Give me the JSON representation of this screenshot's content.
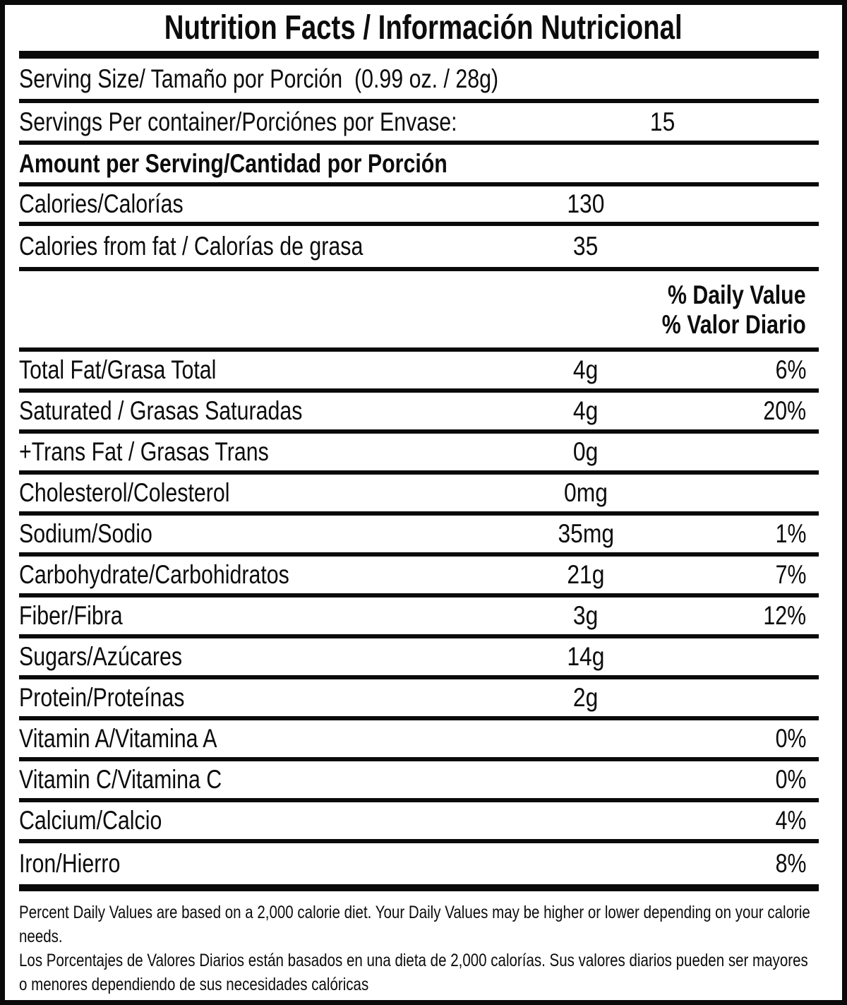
{
  "title": "Nutrition Facts / Información Nutricional",
  "serving": {
    "size_label": "Serving Size/ Tamaño por Porción  (0.99 oz. / 28g)",
    "per_container_label": "Servings Per container/Porciónes por Envase:",
    "per_container_value": "15"
  },
  "amount_per_serving_header": "Amount per Serving/Cantidad por Porción",
  "calories": {
    "label": "Calories/Calorías",
    "value": "130"
  },
  "calories_from_fat": {
    "label": "Calories from fat / Calorías de grasa",
    "value": "35"
  },
  "daily_value_header": {
    "line1": "% Daily Value",
    "line2": "% Valor Diario"
  },
  "nutrients": [
    {
      "label": "Total Fat/Grasa Total",
      "amount": "4g",
      "dv": "6%"
    },
    {
      "label": "Saturated / Grasas Saturadas",
      "amount": "4g",
      "dv": "20%"
    },
    {
      "label": "+Trans Fat / Grasas Trans",
      "amount": "0g",
      "dv": ""
    },
    {
      "label": "Cholesterol/Colesterol",
      "amount": "0mg",
      "dv": ""
    },
    {
      "label": "Sodium/Sodio",
      "amount": "35mg",
      "dv": "1%"
    },
    {
      "label": "Carbohydrate/Carbohidratos",
      "amount": "21g",
      "dv": "7%"
    },
    {
      "label": "Fiber/Fibra",
      "amount": "3g",
      "dv": "12%"
    },
    {
      "label": "Sugars/Azúcares",
      "amount": "14g",
      "dv": ""
    },
    {
      "label": "Protein/Proteínas",
      "amount": "2g",
      "dv": ""
    },
    {
      "label": "Vitamin A/Vitamina A",
      "amount": "",
      "dv": "0%"
    },
    {
      "label": "Vitamin C/Vitamina C",
      "amount": "",
      "dv": "0%"
    },
    {
      "label": "Calcium/Calcio",
      "amount": "",
      "dv": "4%"
    },
    {
      "label": "Iron/Hierro",
      "amount": "",
      "dv": "8%"
    }
  ],
  "footnote": {
    "en": "Percent Daily Values are based on a 2,000 calorie diet. Your Daily Values may be higher or lower depending on your calorie needs.",
    "es": "Los Porcentajes de Valores Diarios están basados en una dieta de 2,000 calorías. Sus valores diarios pueden ser mayores o menores dependiendo de sus necesidades calóricas"
  },
  "colors": {
    "ink": "#0c0c0c",
    "paper": "#ffffff"
  }
}
